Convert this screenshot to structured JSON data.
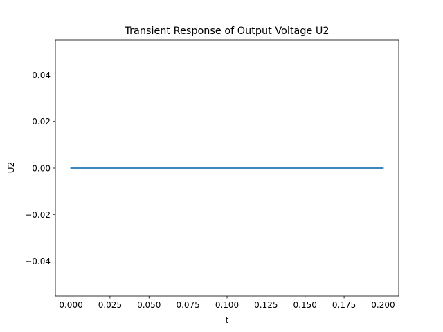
{
  "chart_data": {
    "type": "line",
    "title": "Transient Response of Output Voltage U2",
    "xlabel": "t",
    "ylabel": "U2",
    "xlim": [
      -0.01,
      0.21
    ],
    "ylim": [
      -0.055,
      0.055
    ],
    "x_ticks": [
      0.0,
      0.025,
      0.05,
      0.075,
      0.1,
      0.125,
      0.15,
      0.175,
      0.2
    ],
    "x_tick_labels": [
      "0.000",
      "0.025",
      "0.050",
      "0.075",
      "0.100",
      "0.125",
      "0.150",
      "0.175",
      "0.200"
    ],
    "y_ticks": [
      -0.04,
      -0.02,
      0.0,
      0.02,
      0.04
    ],
    "y_tick_labels": [
      "−0.04",
      "−0.02",
      "0.00",
      "0.02",
      "0.04"
    ],
    "grid": false,
    "series": [
      {
        "x": [
          0.0,
          0.025,
          0.05,
          0.075,
          0.1,
          0.125,
          0.15,
          0.175,
          0.2
        ],
        "y": [
          0,
          0,
          0,
          0,
          0,
          0,
          0,
          0,
          0
        ],
        "color": "#1f77b4"
      }
    ]
  }
}
